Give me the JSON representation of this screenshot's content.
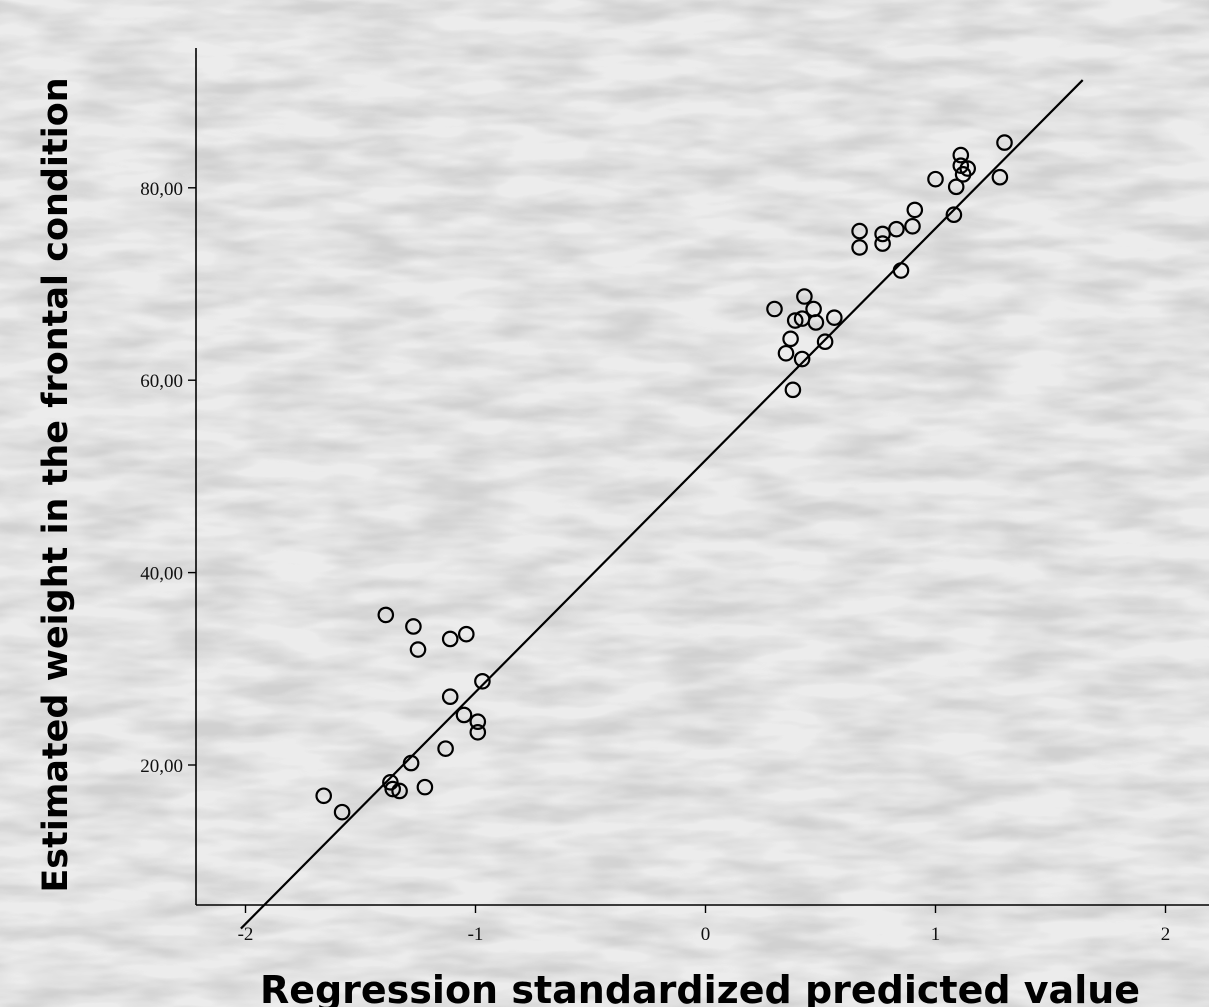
{
  "chart_data": {
    "type": "scatter",
    "title": "",
    "xlabel": "Regression standardized  predicted value",
    "ylabel": "Estimated weight in the frontal condition",
    "xlim": [
      -2.2,
      2.2
    ],
    "ylim": [
      3,
      92
    ],
    "x_ticks": [
      -2,
      -1,
      0,
      1,
      2
    ],
    "x_tick_labels": [
      "-2",
      "-1",
      "0",
      "1",
      "2"
    ],
    "y_ticks": [
      20,
      40,
      60,
      80
    ],
    "y_tick_labels": [
      "20,00",
      "40,00",
      "60,00",
      "80,00"
    ],
    "grid": false,
    "legend": "none",
    "fit_line": {
      "x": [
        -2.02,
        1.64
      ],
      "y": [
        3.0,
        91.2
      ]
    },
    "points": [
      {
        "x": -1.66,
        "y": 16.8
      },
      {
        "x": -1.58,
        "y": 15.1
      },
      {
        "x": -1.37,
        "y": 18.2
      },
      {
        "x": -1.36,
        "y": 17.5
      },
      {
        "x": -1.33,
        "y": 17.3
      },
      {
        "x": -1.28,
        "y": 20.2
      },
      {
        "x": -1.22,
        "y": 17.7
      },
      {
        "x": -1.13,
        "y": 21.7
      },
      {
        "x": -1.11,
        "y": 27.1
      },
      {
        "x": -1.05,
        "y": 25.2
      },
      {
        "x": -0.99,
        "y": 24.5
      },
      {
        "x": -0.99,
        "y": 23.4
      },
      {
        "x": -0.97,
        "y": 28.7
      },
      {
        "x": -1.39,
        "y": 35.6
      },
      {
        "x": -1.27,
        "y": 34.4
      },
      {
        "x": -1.25,
        "y": 32.0
      },
      {
        "x": -1.11,
        "y": 33.1
      },
      {
        "x": -1.04,
        "y": 33.6
      },
      {
        "x": 0.3,
        "y": 67.4
      },
      {
        "x": 0.35,
        "y": 62.8
      },
      {
        "x": 0.37,
        "y": 64.3
      },
      {
        "x": 0.38,
        "y": 59.0
      },
      {
        "x": 0.39,
        "y": 66.2
      },
      {
        "x": 0.42,
        "y": 66.4
      },
      {
        "x": 0.42,
        "y": 62.2
      },
      {
        "x": 0.43,
        "y": 68.7
      },
      {
        "x": 0.47,
        "y": 67.4
      },
      {
        "x": 0.48,
        "y": 66.0
      },
      {
        "x": 0.52,
        "y": 64.0
      },
      {
        "x": 0.56,
        "y": 66.5
      },
      {
        "x": 0.67,
        "y": 75.5
      },
      {
        "x": 0.67,
        "y": 73.8
      },
      {
        "x": 0.77,
        "y": 75.2
      },
      {
        "x": 0.77,
        "y": 74.2
      },
      {
        "x": 0.83,
        "y": 75.7
      },
      {
        "x": 0.85,
        "y": 71.4
      },
      {
        "x": 0.9,
        "y": 76.0
      },
      {
        "x": 0.91,
        "y": 77.7
      },
      {
        "x": 1.0,
        "y": 80.9
      },
      {
        "x": 1.08,
        "y": 77.2
      },
      {
        "x": 1.09,
        "y": 80.1
      },
      {
        "x": 1.11,
        "y": 83.4
      },
      {
        "x": 1.11,
        "y": 82.3
      },
      {
        "x": 1.12,
        "y": 81.4
      },
      {
        "x": 1.14,
        "y": 82.0
      },
      {
        "x": 1.28,
        "y": 81.1
      },
      {
        "x": 1.3,
        "y": 84.7
      }
    ]
  }
}
